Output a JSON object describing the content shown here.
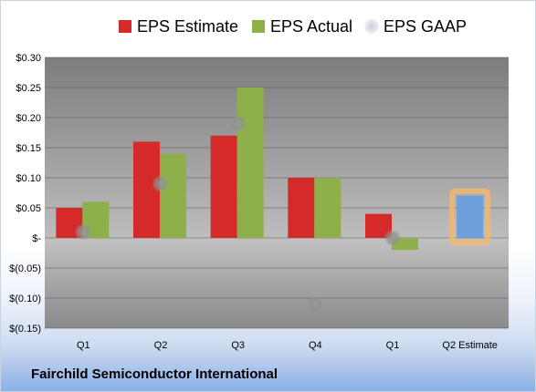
{
  "company_name": "Fairchild Semiconductor International",
  "chart_data": {
    "type": "bar",
    "categories": [
      "Q1",
      "Q2",
      "Q3",
      "Q4",
      "Q1",
      "Q2 Estimate"
    ],
    "series": [
      {
        "name": "EPS Estimate",
        "color": "#d42a2a",
        "values": [
          0.05,
          0.16,
          0.17,
          0.1,
          0.04,
          null
        ]
      },
      {
        "name": "EPS Actual",
        "color": "#8db04a",
        "values": [
          0.06,
          0.14,
          0.25,
          0.1,
          -0.02,
          null
        ]
      },
      {
        "name": "EPS GAAP",
        "color": "#9a9a9a",
        "marker": "circle",
        "values": [
          0.01,
          0.09,
          0.19,
          null,
          0.0,
          null
        ]
      }
    ],
    "estimate_bar": {
      "category": "Q2 Estimate",
      "value": 0.07,
      "color": "#6f9edd",
      "highlight_color": "#f5b96b"
    },
    "extra_gaap_point": {
      "category_index": 3,
      "value": -0.11
    },
    "ylim": [
      -0.15,
      0.3
    ],
    "y_ticks": [
      {
        "value": 0.3,
        "label": "$0.30"
      },
      {
        "value": 0.25,
        "label": "$0.25"
      },
      {
        "value": 0.2,
        "label": "$0.20"
      },
      {
        "value": 0.15,
        "label": "$0.15"
      },
      {
        "value": 0.1,
        "label": "$0.10"
      },
      {
        "value": 0.05,
        "label": "$0.05"
      },
      {
        "value": 0.0,
        "label": "$-"
      },
      {
        "value": -0.05,
        "label": "$(0.05)"
      },
      {
        "value": -0.1,
        "label": "$(0.10)"
      },
      {
        "value": -0.15,
        "label": "$(0.15)"
      }
    ],
    "grid": true,
    "legend_position": "top",
    "plot_background_positive": "#ffffff",
    "plot_background_negative": "#b8b8b8"
  }
}
